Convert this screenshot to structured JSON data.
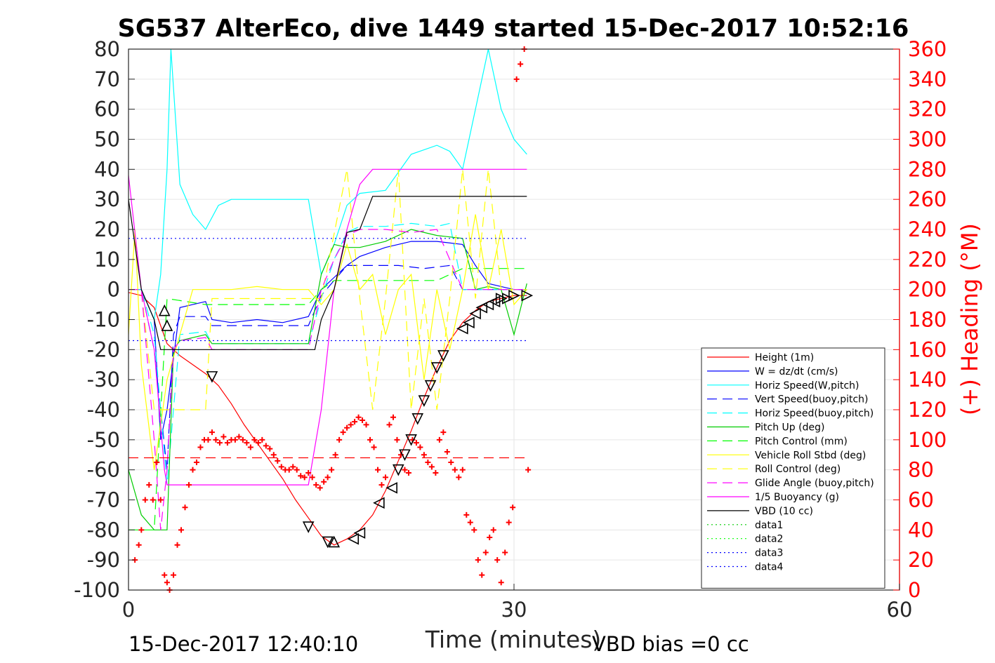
{
  "chart_data": {
    "type": "line",
    "title": "SG537 AlterEco, dive 1449 started 15-Dec-2017 10:52:16",
    "xlabel": "Time (minutes)",
    "ylabel": "",
    "y2label": "(+) Heading (°M)",
    "xlim": [
      0,
      60
    ],
    "ylim": [
      -100,
      80
    ],
    "y2lim": [
      0,
      360
    ],
    "xticks": [
      "0",
      "30",
      "60"
    ],
    "yticks": [
      "80",
      "70",
      "60",
      "50",
      "40",
      "30",
      "20",
      "10",
      "0",
      "-10",
      "-20",
      "-30",
      "-40",
      "-50",
      "-60",
      "-70",
      "-80",
      "-90",
      "-100"
    ],
    "y2ticks": [
      "360",
      "340",
      "320",
      "300",
      "280",
      "260",
      "240",
      "220",
      "200",
      "180",
      "160",
      "140",
      "120",
      "100",
      "80",
      "60",
      "40",
      "20",
      "0"
    ],
    "grid": true,
    "legend_position": "lower-right",
    "footer_left": "15-Dec-2017 12:40:10",
    "footer_right": "VBD bias =0 cc",
    "series": [
      {
        "name": "Height (1m)",
        "color": "#ff0000",
        "style": "solid",
        "x": [
          0,
          1,
          2,
          3,
          4,
          5,
          6,
          7,
          8,
          9,
          10,
          11,
          12,
          13,
          14,
          15,
          16,
          17,
          18,
          19,
          20,
          21,
          22,
          23,
          24,
          25,
          26,
          27,
          28,
          29,
          30,
          31
        ],
        "y": [
          -1,
          -2,
          -6,
          -18,
          -22,
          -25,
          -28,
          -32,
          -38,
          -45,
          -51,
          -57,
          -63,
          -70,
          -76,
          -82,
          -85,
          -83,
          -80,
          -75,
          -67,
          -57,
          -47,
          -36,
          -26,
          -17,
          -11,
          -7,
          -4,
          -3,
          -2,
          -2
        ]
      },
      {
        "name": "W = dz/dt (cm/s)",
        "color": "#0000ff",
        "style": "solid",
        "x": [
          0,
          1,
          2,
          2.5,
          3,
          4,
          5,
          6,
          6.5,
          8,
          10,
          12,
          14,
          15,
          16,
          17,
          18,
          20,
          22,
          24,
          26,
          27,
          28,
          29,
          30,
          31
        ],
        "y": [
          0,
          0,
          -10,
          -50,
          -40,
          -6,
          -5,
          -4,
          -10,
          -11,
          -10,
          -11,
          -9,
          0,
          4,
          8,
          11,
          14,
          16,
          16,
          15,
          8,
          2,
          1,
          0,
          0
        ]
      },
      {
        "name": "Horiz Speed(W,pitch)",
        "color": "#00ffff",
        "style": "solid",
        "x": [
          0,
          1,
          2,
          2.5,
          3,
          3.3,
          4,
          5,
          6,
          7,
          8,
          10,
          12,
          14,
          15,
          16,
          17,
          18,
          20,
          22,
          24,
          25,
          26,
          27,
          28,
          29,
          30,
          31
        ],
        "y": [
          0,
          0,
          -10,
          5,
          40,
          80,
          35,
          25,
          20,
          28,
          30,
          30,
          30,
          30,
          5,
          15,
          28,
          32,
          33,
          45,
          48,
          46,
          40,
          60,
          80,
          60,
          50,
          45
        ]
      },
      {
        "name": "Vert Speed(buoy,pitch)",
        "color": "#0000ff",
        "style": "dashed",
        "x": [
          0,
          1,
          2,
          3,
          3.5,
          4,
          6,
          6.5,
          14,
          15,
          17,
          19,
          21,
          23,
          25,
          26,
          28,
          31
        ],
        "y": [
          0,
          0,
          -20,
          -60,
          -15,
          -9,
          -9,
          -12,
          -12,
          -2,
          8,
          8,
          8,
          7,
          8,
          0,
          0,
          0
        ]
      },
      {
        "name": "Horiz Speed(buoy,pitch)",
        "color": "#00ffff",
        "style": "dashed",
        "x": [
          0,
          1,
          2,
          3,
          4,
          6,
          6.5,
          14,
          15,
          16,
          17,
          18,
          20,
          22,
          24,
          25,
          26,
          28,
          31
        ],
        "y": [
          0,
          0,
          -15,
          -65,
          -15,
          -14,
          -18,
          -18,
          -3,
          10,
          19,
          21,
          21,
          22,
          21,
          22,
          0,
          0,
          0
        ]
      },
      {
        "name": "Pitch Up (deg)",
        "color": "#00cc00",
        "style": "solid",
        "x": [
          0,
          1,
          2,
          3,
          3.5,
          4,
          6,
          6.5,
          14,
          15,
          16,
          17,
          18,
          20,
          22,
          24,
          26,
          27,
          28,
          29,
          30,
          31
        ],
        "y": [
          -60,
          -75,
          -80,
          -80,
          -20,
          -17,
          -15,
          -18,
          -18,
          5,
          15,
          14,
          14,
          16,
          20,
          18,
          17,
          0,
          1,
          0,
          -15,
          2
        ]
      },
      {
        "name": "Pitch Control (mm)",
        "color": "#00ff00",
        "style": "dashed",
        "x": [
          0,
          1,
          2,
          3,
          6,
          14,
          15,
          16,
          18,
          20,
          24,
          26,
          28,
          31
        ],
        "y": [
          -80,
          -80,
          -80,
          -3,
          -5,
          -5,
          0,
          3,
          3,
          3,
          3,
          7,
          7,
          7
        ]
      },
      {
        "name": "Vehicle Roll Stbd (deg)",
        "color": "#ffff00",
        "style": "solid",
        "x": [
          0,
          0.5,
          1,
          2,
          3,
          4,
          5,
          6,
          6.5,
          8,
          10,
          12,
          14,
          15,
          16,
          17,
          18,
          19,
          20,
          21,
          22,
          23,
          24,
          25,
          26,
          27,
          28,
          29,
          30,
          31
        ],
        "y": [
          -15,
          20,
          -25,
          -60,
          -30,
          -15,
          0,
          0,
          0,
          0,
          1,
          0,
          0,
          -5,
          0,
          15,
          0,
          5,
          -15,
          0,
          5,
          -30,
          0,
          -20,
          0,
          25,
          0,
          20,
          -5,
          0
        ]
      },
      {
        "name": "Roll Control (deg)",
        "color": "#ffff00",
        "style": "dashed",
        "x": [
          0,
          1,
          2,
          3,
          4,
          6,
          6.5,
          14,
          15,
          17,
          18,
          19,
          20,
          21,
          22,
          23,
          24,
          25,
          26,
          27,
          28,
          29,
          30,
          31
        ],
        "y": [
          0,
          0,
          -40,
          -40,
          -40,
          -40,
          -3,
          -3,
          -3,
          40,
          -3,
          -40,
          -3,
          40,
          -40,
          -3,
          -40,
          -3,
          40,
          -3,
          40,
          0,
          0,
          0
        ]
      },
      {
        "name": "Glide Angle (buoy,pitch)",
        "color": "#ff00ff",
        "style": "dashed",
        "x": [
          0,
          1,
          2,
          2.5,
          3,
          3.5,
          4,
          6,
          6.5,
          14,
          15,
          16,
          17,
          18,
          20,
          22,
          24,
          26,
          28,
          31
        ],
        "y": [
          0,
          0,
          -50,
          -80,
          -60,
          -20,
          -17,
          -16,
          -20,
          -20,
          0,
          10,
          18,
          20,
          20,
          19,
          20,
          0,
          0,
          0
        ]
      },
      {
        "name": "1/5 Buoyancy (g)",
        "color": "#ff00ff",
        "style": "solid",
        "x": [
          0,
          1,
          2,
          2.8,
          3,
          14,
          15,
          16,
          17,
          18,
          19,
          31
        ],
        "y": [
          38,
          0,
          -20,
          -60,
          -65,
          -65,
          -40,
          0,
          20,
          35,
          40,
          40
        ]
      },
      {
        "name": "VBD (10 cc)",
        "color": "#000000",
        "style": "solid",
        "x": [
          0,
          1,
          2,
          2.5,
          3,
          14.5,
          15,
          16,
          17,
          18,
          19,
          31
        ],
        "y": [
          30,
          0,
          -10,
          -20,
          -20,
          -20,
          -10,
          0,
          19,
          20,
          31,
          31
        ]
      },
      {
        "name": "data1",
        "color": "#00cc00",
        "style": "dotted",
        "x": [],
        "y": []
      },
      {
        "name": "data2",
        "color": "#00ff00",
        "style": "dotted",
        "x": [],
        "y": []
      },
      {
        "name": "data3",
        "color": "#0000ff",
        "style": "dotted",
        "x": [
          0,
          31
        ],
        "y": [
          -17,
          -17
        ]
      },
      {
        "name": "data4",
        "color": "#0000ff",
        "style": "dotted",
        "x": [
          0,
          31
        ],
        "y": [
          17,
          17
        ]
      }
    ],
    "ref_line": {
      "color": "#ff0000",
      "style": "dashed",
      "y": -56,
      "x": [
        0,
        31
      ]
    },
    "heading_points": {
      "color": "#ff0000",
      "x": [
        0.5,
        0.8,
        1.0,
        1.3,
        1.6,
        1.9,
        2.2,
        2.5,
        2.8,
        3.0,
        3.2,
        3.5,
        3.8,
        4.1,
        4.4,
        4.7,
        5.0,
        5.3,
        5.6,
        5.9,
        6.2,
        6.5,
        6.8,
        7.1,
        7.4,
        7.7,
        8.0,
        8.3,
        8.6,
        8.9,
        9.2,
        9.5,
        9.8,
        10.1,
        10.4,
        10.7,
        11.0,
        11.3,
        11.6,
        11.9,
        12.2,
        12.5,
        12.8,
        13.1,
        13.4,
        13.7,
        14.0,
        14.3,
        14.6,
        14.9,
        15.2,
        15.5,
        15.8,
        16.1,
        16.4,
        16.7,
        17.0,
        17.3,
        17.6,
        17.9,
        18.2,
        18.5,
        18.8,
        19.1,
        19.4,
        19.7,
        20.0,
        20.3,
        20.6,
        20.9,
        21.2,
        21.5,
        21.8,
        22.1,
        22.4,
        22.7,
        23.0,
        23.3,
        23.6,
        23.9,
        24.2,
        24.5,
        24.8,
        25.1,
        25.4,
        25.7,
        26.0,
        26.3,
        26.6,
        26.9,
        27.2,
        27.5,
        27.8,
        28.1,
        28.4,
        28.7,
        29.0,
        29.3,
        29.6,
        29.9,
        30.2,
        30.5,
        30.8,
        31.1
      ],
      "y": [
        20,
        30,
        40,
        60,
        70,
        60,
        85,
        60,
        10,
        5,
        0,
        10,
        30,
        40,
        55,
        70,
        80,
        85,
        95,
        100,
        100,
        105,
        100,
        98,
        102,
        98,
        100,
        100,
        102,
        100,
        98,
        95,
        100,
        98,
        100,
        96,
        94,
        90,
        86,
        82,
        80,
        80,
        82,
        80,
        76,
        75,
        78,
        75,
        70,
        68,
        72,
        75,
        80,
        90,
        100,
        105,
        108,
        110,
        112,
        115,
        113,
        110,
        100,
        95,
        80,
        70,
        75,
        110,
        115,
        100,
        90,
        80,
        78,
        100,
        98,
        95,
        90,
        85,
        82,
        78,
        100,
        105,
        92,
        85,
        80,
        75,
        80,
        50,
        45,
        40,
        20,
        10,
        25,
        35,
        40,
        20,
        5,
        25,
        45,
        55,
        340,
        350,
        360,
        80
      ]
    },
    "vbd_markers": {
      "color": "#000000",
      "points": [
        {
          "x": 2.8,
          "y": -7,
          "dir": "up"
        },
        {
          "x": 3.0,
          "y": -12,
          "dir": "up"
        },
        {
          "x": 6.5,
          "y": -29,
          "dir": "down"
        },
        {
          "x": 14.0,
          "y": -79,
          "dir": "down"
        },
        {
          "x": 15.5,
          "y": -84,
          "dir": "down"
        },
        {
          "x": 16.0,
          "y": -84,
          "dir": "up"
        },
        {
          "x": 17.5,
          "y": -83,
          "dir": "left"
        },
        {
          "x": 18.0,
          "y": -81,
          "dir": "left"
        },
        {
          "x": 19.5,
          "y": -71,
          "dir": "left"
        },
        {
          "x": 20.5,
          "y": -66,
          "dir": "left"
        },
        {
          "x": 21.0,
          "y": -60,
          "dir": "down"
        },
        {
          "x": 21.5,
          "y": -55,
          "dir": "down"
        },
        {
          "x": 22.0,
          "y": -50,
          "dir": "down"
        },
        {
          "x": 22.5,
          "y": -43,
          "dir": "down"
        },
        {
          "x": 23.0,
          "y": -37,
          "dir": "down"
        },
        {
          "x": 23.5,
          "y": -32,
          "dir": "down"
        },
        {
          "x": 24.0,
          "y": -26,
          "dir": "down"
        },
        {
          "x": 24.5,
          "y": -22,
          "dir": "down"
        },
        {
          "x": 26.0,
          "y": -13,
          "dir": "left"
        },
        {
          "x": 26.5,
          "y": -11,
          "dir": "left"
        },
        {
          "x": 27.0,
          "y": -8,
          "dir": "left"
        },
        {
          "x": 27.5,
          "y": -6,
          "dir": "left"
        },
        {
          "x": 28.0,
          "y": -5,
          "dir": "left"
        },
        {
          "x": 28.5,
          "y": -4,
          "dir": "left"
        },
        {
          "x": 29.0,
          "y": -3,
          "dir": "right"
        },
        {
          "x": 29.5,
          "y": -3,
          "dir": "right"
        },
        {
          "x": 30.0,
          "y": -2,
          "dir": "right"
        },
        {
          "x": 31.0,
          "y": -2,
          "dir": "right"
        }
      ]
    }
  }
}
